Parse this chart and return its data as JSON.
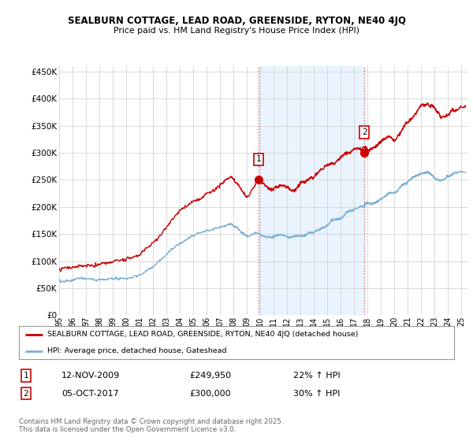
{
  "title1": "SEALBURN COTTAGE, LEAD ROAD, GREENSIDE, RYTON, NE40 4JQ",
  "title2": "Price paid vs. HM Land Registry's House Price Index (HPI)",
  "ylabel_ticks": [
    "£0",
    "£50K",
    "£100K",
    "£150K",
    "£200K",
    "£250K",
    "£300K",
    "£350K",
    "£400K",
    "£450K"
  ],
  "ytick_vals": [
    0,
    50000,
    100000,
    150000,
    200000,
    250000,
    300000,
    350000,
    400000,
    450000
  ],
  "ylim": [
    0,
    460000
  ],
  "xlim_start": 1995.0,
  "xlim_end": 2025.5,
  "hpi_color": "#7ab0d4",
  "price_color": "#cc0000",
  "transaction1_x": 2009.87,
  "transaction1_y": 249950,
  "transaction2_x": 2017.76,
  "transaction2_y": 300000,
  "vline_color": "#e06060",
  "shade_color": "#ddeeff",
  "legend_line1": "SEALBURN COTTAGE, LEAD ROAD, GREENSIDE, RYTON, NE40 4JQ (detached house)",
  "legend_line2": "HPI: Average price, detached house, Gateshead",
  "annotation1_date": "12-NOV-2009",
  "annotation1_price": "£249,950",
  "annotation1_pct": "22% ↑ HPI",
  "annotation2_date": "05-OCT-2017",
  "annotation2_price": "£300,000",
  "annotation2_pct": "30% ↑ HPI",
  "footer": "Contains HM Land Registry data © Crown copyright and database right 2025.\nThis data is licensed under the Open Government Licence v3.0.",
  "background_color": "#ffffff",
  "grid_color": "#cccccc"
}
